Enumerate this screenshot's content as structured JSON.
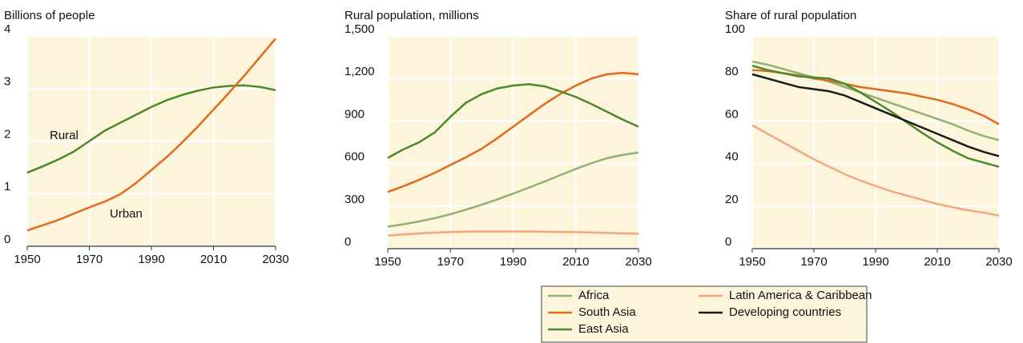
{
  "chart_data": [
    {
      "type": "line",
      "title": "Billions of people",
      "x": [
        1950,
        1955,
        1960,
        1965,
        1970,
        1975,
        1980,
        1985,
        1990,
        1995,
        2000,
        2005,
        2010,
        2015,
        2020,
        2025,
        2030
      ],
      "xlim": [
        1950,
        2030
      ],
      "xticks": [
        1950,
        1970,
        1990,
        2010,
        2030
      ],
      "ylim": [
        0,
        4
      ],
      "yticks": [
        0,
        1,
        2,
        3,
        4
      ],
      "grid": true,
      "series": [
        {
          "name": "Rural",
          "color": "#4a8a2a",
          "values": [
            1.4,
            1.52,
            1.65,
            1.8,
            2.0,
            2.2,
            2.35,
            2.5,
            2.65,
            2.78,
            2.88,
            2.96,
            3.02,
            3.05,
            3.06,
            3.03,
            2.97
          ]
        },
        {
          "name": "Urban",
          "color": "#e26a1c",
          "values": [
            0.3,
            0.4,
            0.5,
            0.62,
            0.74,
            0.85,
            0.99,
            1.2,
            1.45,
            1.7,
            1.98,
            2.28,
            2.6,
            2.92,
            3.25,
            3.6,
            3.95
          ]
        }
      ]
    },
    {
      "type": "line",
      "title": "Rural population, millions",
      "x": [
        1950,
        1955,
        1960,
        1965,
        1970,
        1975,
        1980,
        1985,
        1990,
        1995,
        2000,
        2005,
        2010,
        2015,
        2020,
        2025,
        2030
      ],
      "xlim": [
        1950,
        2030
      ],
      "xticks": [
        1950,
        1970,
        1990,
        2010,
        2030
      ],
      "ylim": [
        0,
        1500
      ],
      "yticks": [
        0,
        300,
        600,
        900,
        {
          "value": 1200,
          "label": "1,200"
        },
        {
          "value": 1500,
          "label": "1,500"
        }
      ],
      "grid": true,
      "series": [
        {
          "name": "Africa",
          "color": "#8fb172",
          "values": [
            155,
            172,
            192,
            215,
            243,
            275,
            310,
            348,
            388,
            430,
            473,
            518,
            562,
            603,
            638,
            662,
            678
          ]
        },
        {
          "name": "South Asia",
          "color": "#e26a1c",
          "values": [
            400,
            440,
            485,
            535,
            590,
            645,
            705,
            780,
            860,
            940,
            1020,
            1090,
            1150,
            1200,
            1230,
            1240,
            1230
          ]
        },
        {
          "name": "East Asia",
          "color": "#4a8a2a",
          "values": [
            640,
            700,
            750,
            820,
            930,
            1030,
            1090,
            1130,
            1150,
            1160,
            1145,
            1110,
            1070,
            1020,
            965,
            910,
            860
          ]
        },
        {
          "name": "Latin America & Caribbean",
          "color": "#f2a87e",
          "values": [
            92,
            100,
            108,
            113,
            117,
            120,
            121,
            121,
            121,
            121,
            120,
            118,
            116,
            114,
            111,
            108,
            105
          ]
        }
      ]
    },
    {
      "type": "line",
      "title": "Share of rural population",
      "x": [
        1950,
        1955,
        1960,
        1965,
        1970,
        1975,
        1980,
        1985,
        1990,
        1995,
        2000,
        2005,
        2010,
        2015,
        2020,
        2025,
        2030
      ],
      "xlim": [
        1950,
        2030
      ],
      "xticks": [
        1950,
        1970,
        1990,
        2010,
        2030
      ],
      "ylim": [
        0,
        100
      ],
      "yticks": [
        0,
        20,
        40,
        60,
        80,
        100
      ],
      "grid": true,
      "legend": "bottom",
      "series": [
        {
          "name": "Africa",
          "color": "#8fb172",
          "values": [
            88,
            86.5,
            84.5,
            82.5,
            80.5,
            78.5,
            76,
            73.5,
            71,
            68.5,
            66,
            63.5,
            61,
            58.5,
            55.5,
            53,
            51
          ]
        },
        {
          "name": "South Asia",
          "color": "#e26a1c",
          "values": [
            84,
            83.5,
            82.5,
            81.5,
            80,
            79,
            77.5,
            76,
            75,
            74,
            73,
            71.5,
            70,
            68,
            65.5,
            62.5,
            58.5
          ]
        },
        {
          "name": "East Asia",
          "color": "#4a8a2a",
          "values": [
            86,
            84,
            82.5,
            81,
            80.5,
            80,
            77.5,
            73.5,
            69,
            64.5,
            59.5,
            54.5,
            50,
            46,
            42.5,
            40.5,
            38.5
          ]
        },
        {
          "name": "Latin America & Caribbean",
          "color": "#f2a87e",
          "values": [
            58,
            54,
            50,
            46,
            42,
            38.5,
            35,
            32,
            29.5,
            27,
            25,
            23,
            21,
            19.5,
            18,
            17,
            15.5
          ]
        },
        {
          "name": "Developing countries",
          "color": "#1a1a1a",
          "values": [
            82,
            80,
            78,
            76,
            75,
            74,
            72,
            69,
            66,
            63,
            60,
            57,
            54,
            51,
            48,
            45.5,
            43.5
          ]
        }
      ]
    }
  ]
}
